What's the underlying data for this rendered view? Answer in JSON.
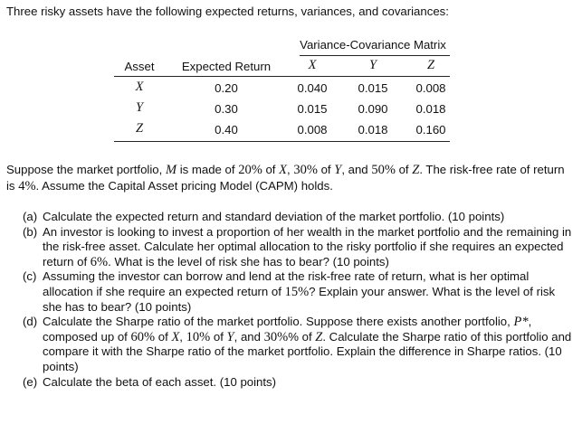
{
  "intro": "Three risky assets have the following expected returns, variances, and covariances:",
  "table": {
    "matrix_title": "Variance-Covariance Matrix",
    "col_asset": "Asset",
    "col_er": "Expected Return",
    "cov_headers": [
      "X",
      "Y",
      "Z"
    ],
    "rows": [
      {
        "asset": "X",
        "er": "0.20",
        "cov": [
          "0.040",
          "0.015",
          "0.008"
        ]
      },
      {
        "asset": "Y",
        "er": "0.30",
        "cov": [
          "0.015",
          "0.090",
          "0.018"
        ]
      },
      {
        "asset": "Z",
        "er": "0.40",
        "cov": [
          "0.008",
          "0.018",
          "0.160"
        ]
      }
    ]
  },
  "paragraph": {
    "p1": "Suppose the market portfolio, ",
    "m": "M",
    "p2": " is made of ",
    "v1": "20%",
    "p3": " of ",
    "x": "X",
    "p4": ", ",
    "v2": "30%",
    "p5": " of ",
    "y": "Y",
    "p6": ", and ",
    "v3": "50%",
    "p7": " of ",
    "z": "Z",
    "p8": ". The risk-free rate of return is ",
    "rf": "4%",
    "p9": ". Assume the Capital Asset pricing Model (CAPM) holds."
  },
  "questions": {
    "a": {
      "label": "(a)",
      "text": "Calculate the expected return and standard deviation of the market portfolio. (10 points)"
    },
    "b": {
      "label": "(b)",
      "t1": "An investor is looking to invest a proportion of her wealth in the market portfolio and the remaining in the risk-free asset. Calculate her optimal allocation to the risky portfolio if she requires an expected return of ",
      "v": "6%",
      "t2": ". What is the level of risk she has to bear? (10 points)"
    },
    "c": {
      "label": "(c)",
      "t1": "Assuming the investor can borrow and lend at the risk-free rate of return, what is her optimal allocation if she require an expected return of ",
      "v": "15%",
      "t2": "? Explain your answer. What is the level of risk she has to bear? (10 points)"
    },
    "d": {
      "label": "(d)",
      "t1": "Calculate the Sharpe ratio of the market portfolio. Suppose there exists another portfolio, ",
      "p": "P*",
      "t2": ", composed up of ",
      "v1": "60%",
      "t3": " of ",
      "x": "X",
      "t4": ", ",
      "v2": "10%",
      "t5": " of ",
      "y": "Y",
      "t6": ", and ",
      "v3": "30%",
      "t7": "% of ",
      "z": "Z",
      "t8": ". Calculate the Sharpe ratio of this portfolio and compare it with the Sharpe ratio of the market portfolio. Explain the difference in Sharpe ratios. (10 points)"
    },
    "e": {
      "label": "(e)",
      "text": "Calculate the beta of each asset. (10 points)"
    }
  }
}
